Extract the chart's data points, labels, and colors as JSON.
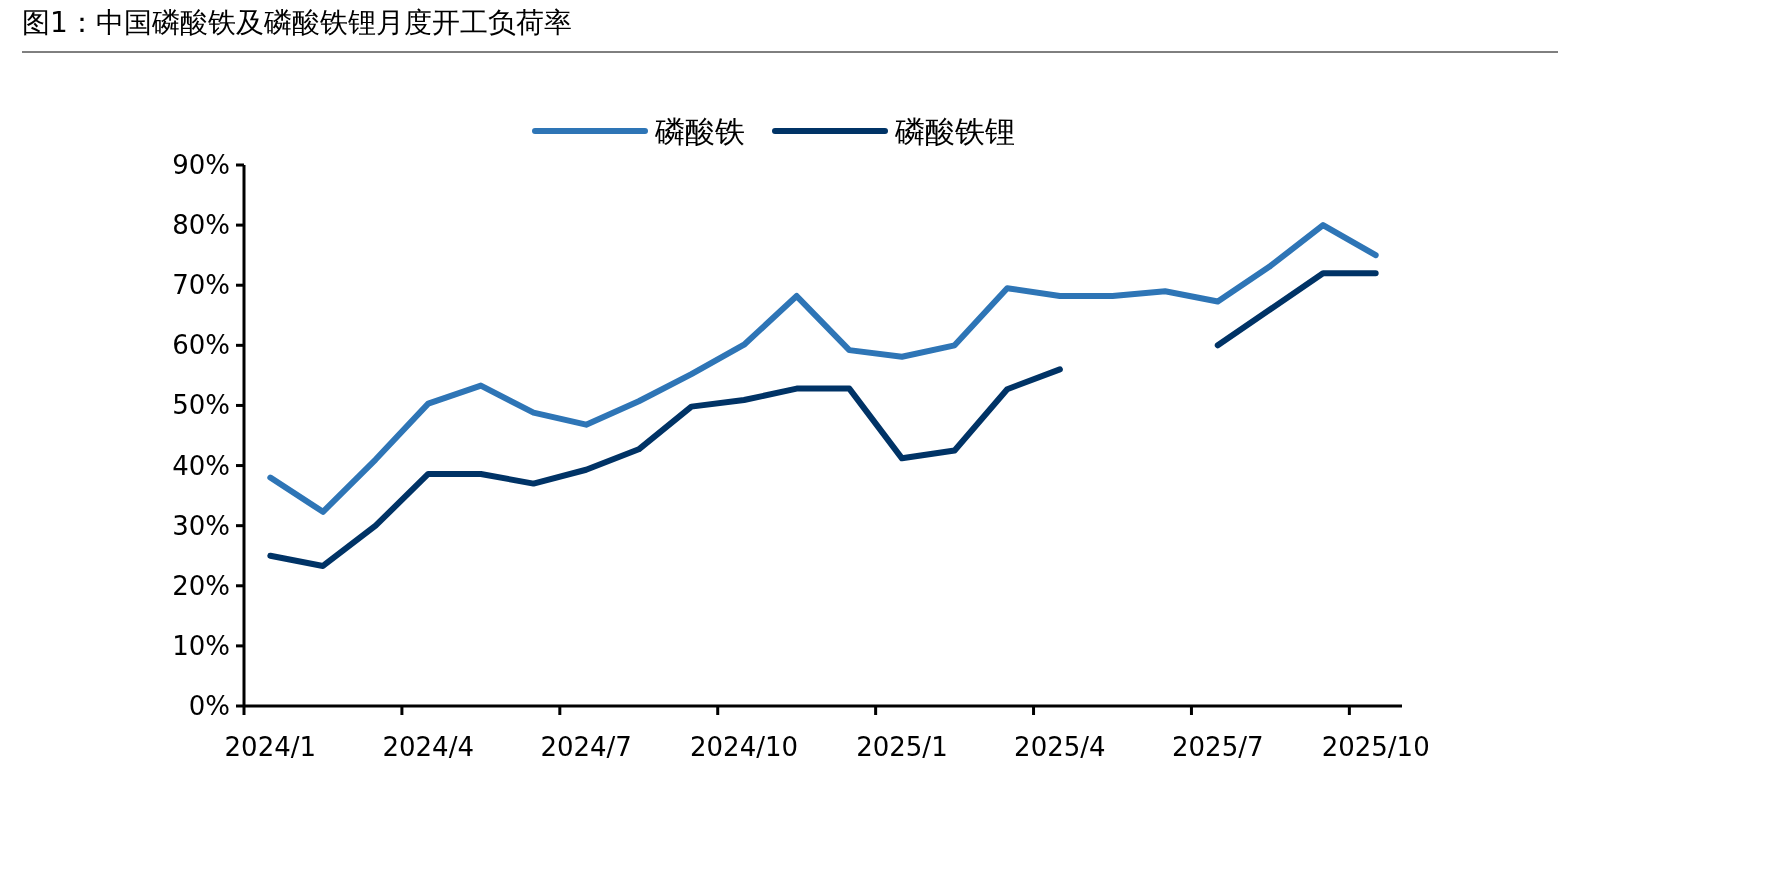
{
  "chart_data": {
    "type": "line",
    "title": "图1：中国磷酸铁及磷酸铁锂月度开工负荷率",
    "categories": [
      "2024/1",
      null,
      null,
      "2024/4",
      null,
      null,
      "2024/7",
      null,
      null,
      "2024/10",
      null,
      null,
      "2025/1",
      null,
      null,
      "2025/4",
      null,
      null,
      "2025/7",
      null,
      null,
      "2025/10"
    ],
    "series": [
      {
        "name": "磷酸铁",
        "color": "#2e75b6",
        "values": [
          38,
          32.3,
          41,
          50.3,
          53.3,
          48.8,
          46.8,
          50.7,
          55.2,
          60.1,
          68.2,
          59.2,
          58.1,
          60,
          69.5,
          68.2,
          68.2,
          69,
          67.3,
          73.2,
          80,
          75
        ]
      },
      {
        "name": "磷酸铁锂",
        "color": "#003366",
        "values": [
          25,
          23.3,
          30,
          38.6,
          38.6,
          37,
          39.3,
          42.7,
          49.8,
          50.9,
          52.8,
          52.8,
          41.2,
          42.5,
          52.7,
          56,
          null,
          null,
          60,
          66,
          72,
          72
        ]
      }
    ],
    "ylim": [
      0,
      90
    ],
    "yticks": [
      {
        "value": 0,
        "label": "0%"
      },
      {
        "value": 10,
        "label": "10%"
      },
      {
        "value": 20,
        "label": "20%"
      },
      {
        "value": 30,
        "label": "30%"
      },
      {
        "value": 40,
        "label": "40%"
      },
      {
        "value": 50,
        "label": "50%"
      },
      {
        "value": 60,
        "label": "60%"
      },
      {
        "value": 70,
        "label": "70%"
      },
      {
        "value": 80,
        "label": "80%"
      },
      {
        "value": 90,
        "label": "90%"
      }
    ],
    "grid": false,
    "legend": "top",
    "marker": "none",
    "line_style": "solid"
  }
}
